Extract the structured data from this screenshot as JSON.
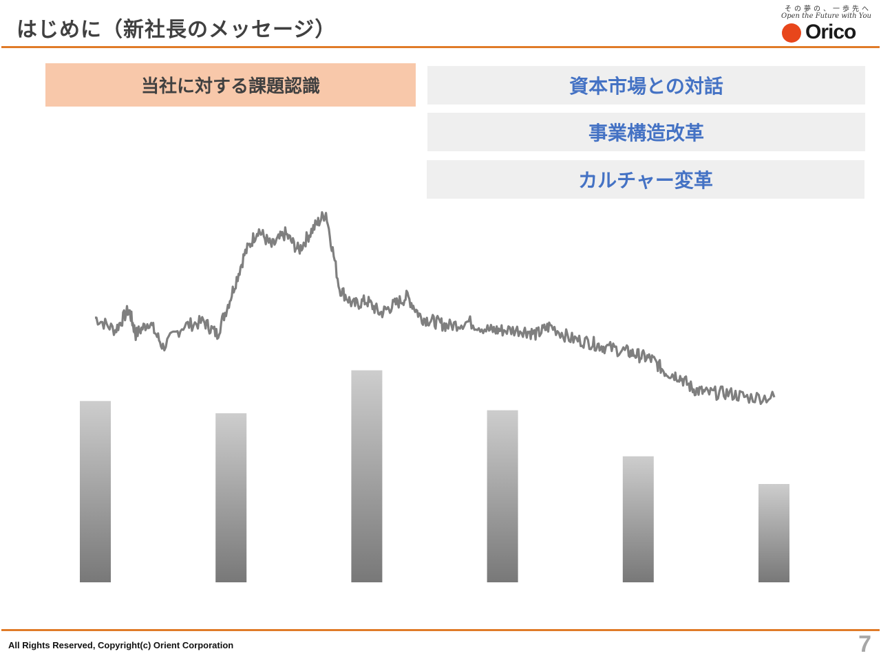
{
  "header": {
    "title": "はじめに（新社長のメッセージ）",
    "tagline_jp": "その夢の、一歩先へ",
    "tagline_en": "Open the Future with You",
    "brand": "Orico",
    "brand_color": "#e8461b",
    "accent_color": "#e07b28"
  },
  "issue_label": "当社に対する課題認識",
  "pillars": [
    "資本市場との対話",
    "事業構造改革",
    "カルチャー変革"
  ],
  "footer": {
    "copyright": "All Rights Reserved, Copyright(c) Orient Corporation",
    "page_number": "7"
  },
  "chart_data": {
    "type": "bar",
    "categories": [
      "",
      "",
      "",
      "",
      "",
      ""
    ],
    "values": [
      59,
      55,
      69,
      56,
      41,
      32
    ],
    "ylim": [
      0,
      100
    ],
    "bar_color": "#a0a0a0",
    "line_series": {
      "type": "line",
      "color": "#7f7f7f",
      "keypoints": [
        [
          0,
          71
        ],
        [
          3,
          68
        ],
        [
          5,
          73
        ],
        [
          6,
          67
        ],
        [
          8,
          70
        ],
        [
          10,
          64
        ],
        [
          13,
          69
        ],
        [
          16,
          70
        ],
        [
          18,
          67
        ],
        [
          20,
          76
        ],
        [
          22,
          86
        ],
        [
          24,
          92
        ],
        [
          26,
          88
        ],
        [
          28,
          91
        ],
        [
          30,
          87
        ],
        [
          32,
          92
        ],
        [
          34,
          96
        ],
        [
          36,
          78
        ],
        [
          38,
          74
        ],
        [
          40,
          75
        ],
        [
          42,
          72
        ],
        [
          44,
          74
        ],
        [
          46,
          76
        ],
        [
          48,
          71
        ],
        [
          50,
          70
        ],
        [
          52,
          69
        ],
        [
          55,
          70
        ],
        [
          58,
          68
        ],
        [
          60,
          68
        ],
        [
          63,
          68
        ],
        [
          65,
          67
        ],
        [
          67,
          69
        ],
        [
          70,
          66
        ],
        [
          73,
          65
        ],
        [
          75,
          64
        ],
        [
          78,
          63
        ],
        [
          80,
          62
        ],
        [
          82,
          61
        ],
        [
          84,
          58
        ],
        [
          86,
          57
        ],
        [
          88,
          54
        ],
        [
          90,
          53
        ],
        [
          93,
          53
        ],
        [
          96,
          52
        ],
        [
          100,
          52
        ]
      ]
    }
  }
}
